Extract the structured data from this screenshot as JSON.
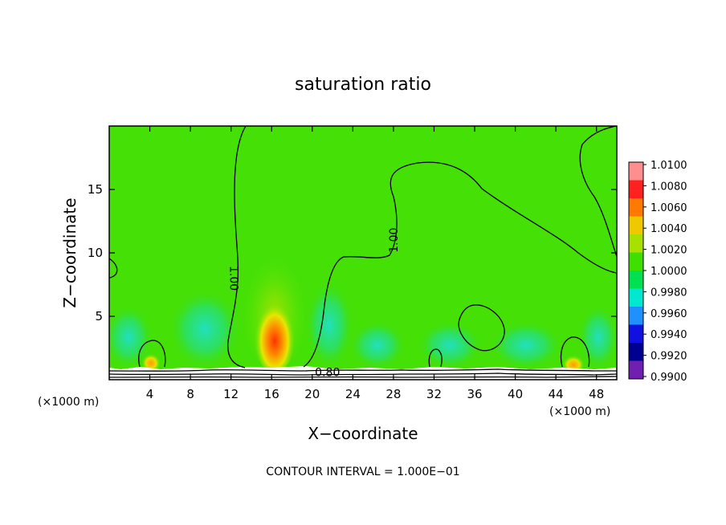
{
  "chart_data": {
    "type": "contour",
    "title": "saturation ratio",
    "xlabel": "X−coordinate",
    "ylabel": "Z−coordinate",
    "x_unit": "(×1000 m)",
    "x_unit_right": "(×1000 m)",
    "xlim": [
      0,
      50
    ],
    "ylim": [
      0,
      20
    ],
    "x_ticks": [
      4,
      8,
      12,
      16,
      20,
      24,
      28,
      32,
      36,
      40,
      44,
      48
    ],
    "y_ticks": [
      5,
      10,
      15
    ],
    "colorbar": {
      "min": 0.99,
      "max": 1.01,
      "labels": [
        "1.0100",
        "1.0080",
        "1.0060",
        "1.0040",
        "1.0020",
        "1.0000",
        "0.9980",
        "0.9960",
        "0.9940",
        "0.9920",
        "0.9900"
      ]
    },
    "contour_labels": [
      {
        "text": "1.00",
        "x": 12.3,
        "z": 8.0,
        "rotation": 90
      },
      {
        "text": "1.00",
        "x": 28.0,
        "z": 11.0,
        "rotation": -90
      },
      {
        "text": "0.80",
        "x": 21.5,
        "z": 0.6,
        "rotation": 0
      }
    ],
    "footer": "CONTOUR INTERVAL = 1.000E−01",
    "background_level": 1.0
  }
}
